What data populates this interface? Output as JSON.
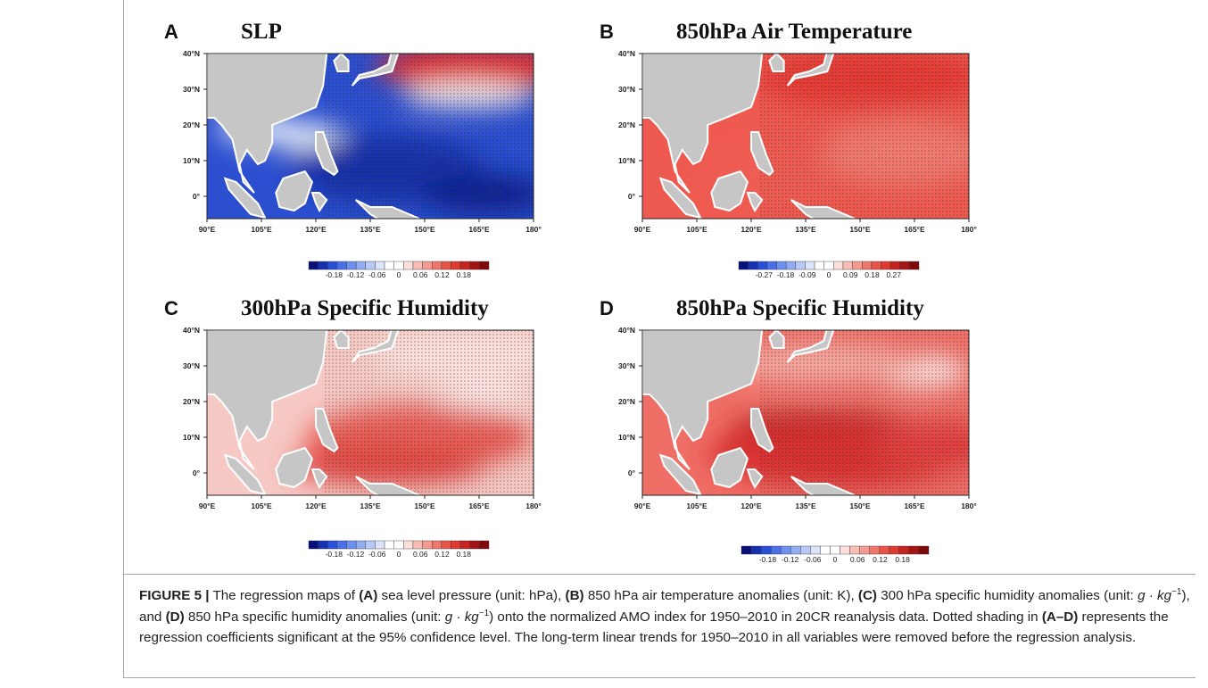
{
  "panels": [
    {
      "letter": "A",
      "title": "SLP",
      "colorbar_ticks": [
        "-0.18",
        "-0.12",
        "-0.06",
        "0",
        "0.06",
        "0.12",
        "0.18"
      ]
    },
    {
      "letter": "B",
      "title": "850hPa Air Temperature",
      "colorbar_ticks": [
        "-0.27",
        "-0.18",
        "-0.09",
        "0",
        "0.09",
        "0.18",
        "0.27"
      ]
    },
    {
      "letter": "C",
      "title": "300hPa Specific Humidity",
      "colorbar_ticks": [
        "-0.18",
        "-0.12",
        "-0.06",
        "0",
        "0.06",
        "0.12",
        "0.18"
      ]
    },
    {
      "letter": "D",
      "title": "850hPa Specific Humidity",
      "colorbar_ticks": [
        "-0.18",
        "-0.12",
        "-0.06",
        "0",
        "0.06",
        "0.12",
        "0.18"
      ]
    }
  ],
  "lat_labels": [
    "40°N",
    "30°N",
    "20°N",
    "10°N",
    "0°"
  ],
  "lon_labels": [
    "90°E",
    "105°E",
    "120°E",
    "135°E",
    "150°E",
    "165°E",
    "180°"
  ],
  "caption": {
    "segments": [
      {
        "text": "FIGURE 5 |",
        "style": "bold"
      },
      {
        "text": " The regression maps of ",
        "style": "normal"
      },
      {
        "text": "(A)",
        "style": "bold"
      },
      {
        "text": " sea level pressure (unit: hPa), ",
        "style": "normal"
      },
      {
        "text": "(B)",
        "style": "bold"
      },
      {
        "text": " 850 hPa air temperature anomalies (unit: K), ",
        "style": "normal"
      },
      {
        "text": "(C)",
        "style": "bold"
      },
      {
        "text": " 300 hPa specific humidity anomalies (unit: ",
        "style": "normal"
      },
      {
        "text": "g · kg",
        "style": "italic"
      },
      {
        "text": "−1",
        "style": "sup"
      },
      {
        "text": "), and ",
        "style": "normal"
      },
      {
        "text": "(D)",
        "style": "bold"
      },
      {
        "text": " 850 hPa specific humidity anomalies (unit: ",
        "style": "normal"
      },
      {
        "text": "g · kg",
        "style": "italic"
      },
      {
        "text": "−1",
        "style": "sup"
      },
      {
        "text": ") onto the normalized AMO index for 1950–2010 in 20CR reanalysis data. Dotted shading in ",
        "style": "normal"
      },
      {
        "text": "(A–D)",
        "style": "bold"
      },
      {
        "text": " represents the regression coefficients significant at the 95% confidence level. The long-term linear trends for 1950–2010 in all variables were removed before the regression analysis.",
        "style": "normal"
      }
    ]
  }
}
